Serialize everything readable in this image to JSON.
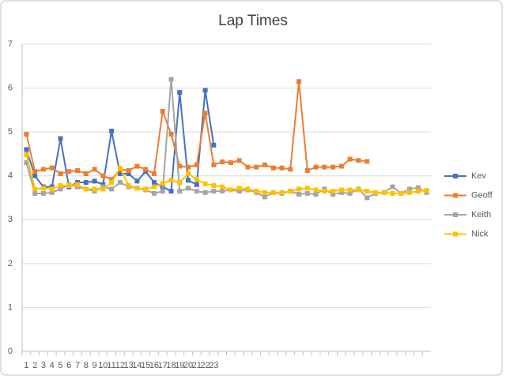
{
  "chart_data": {
    "type": "line",
    "title": "Lap Times",
    "categories": [
      1,
      2,
      3,
      4,
      5,
      6,
      7,
      8,
      9,
      10,
      11,
      12,
      13,
      14,
      15,
      16,
      17,
      18,
      19,
      20,
      21,
      22,
      23,
      null,
      null,
      null,
      null,
      null,
      null,
      null,
      null,
      null,
      null,
      null,
      null,
      null,
      null,
      null,
      null,
      null,
      null,
      null,
      null,
      null,
      null,
      null,
      null,
      null
    ],
    "ylim": [
      0,
      7
    ],
    "yticks": [
      0,
      1,
      2,
      3,
      4,
      5,
      6,
      7
    ],
    "grid": true,
    "legend": "right",
    "series": [
      {
        "name": "Kev",
        "color": "#4472c4",
        "values": [
          4.6,
          4.0,
          3.75,
          3.75,
          4.85,
          3.75,
          3.85,
          3.85,
          3.88,
          3.8,
          5.02,
          4.05,
          4.05,
          3.88,
          4.1,
          3.85,
          3.75,
          3.65,
          5.9,
          3.9,
          3.8,
          5.95,
          4.7,
          null,
          null,
          null,
          null,
          null,
          null,
          null,
          null,
          null,
          null,
          null,
          null,
          null,
          null,
          null,
          null,
          null,
          null,
          null,
          null,
          null,
          null,
          null,
          null,
          null
        ]
      },
      {
        "name": "Geoff",
        "color": "#ed7d31",
        "values": [
          4.95,
          4.1,
          4.15,
          4.18,
          4.05,
          4.1,
          4.12,
          4.05,
          4.15,
          4.0,
          3.92,
          4.15,
          4.12,
          4.22,
          4.15,
          4.05,
          5.47,
          4.95,
          4.22,
          4.2,
          4.25,
          5.43,
          4.25,
          4.32,
          4.3,
          4.35,
          4.2,
          4.2,
          4.25,
          4.18,
          4.18,
          4.15,
          6.15,
          4.12,
          4.2,
          4.2,
          4.2,
          4.22,
          4.38,
          4.35,
          4.33,
          null,
          null,
          null,
          null,
          null,
          null,
          null
        ]
      },
      {
        "name": "Keith",
        "color": "#a5a5a5",
        "values": [
          4.3,
          3.6,
          3.6,
          3.62,
          3.7,
          3.8,
          3.75,
          3.7,
          3.65,
          3.75,
          3.7,
          3.85,
          3.75,
          3.72,
          3.68,
          3.6,
          3.65,
          6.2,
          3.65,
          3.72,
          3.65,
          3.62,
          3.65,
          3.65,
          3.68,
          3.65,
          3.68,
          3.62,
          3.52,
          3.62,
          3.6,
          3.65,
          3.58,
          3.6,
          3.58,
          3.7,
          3.58,
          3.62,
          3.6,
          3.7,
          3.5,
          3.6,
          3.62,
          3.75,
          3.6,
          3.7,
          3.73,
          3.62
        ]
      },
      {
        "name": "Nick",
        "color": "#ffc000",
        "values": [
          4.48,
          3.7,
          3.72,
          3.7,
          3.78,
          3.78,
          3.8,
          3.7,
          3.7,
          3.7,
          3.85,
          4.18,
          3.78,
          3.72,
          3.7,
          3.75,
          3.83,
          3.9,
          3.85,
          4.05,
          3.92,
          3.82,
          3.78,
          3.75,
          3.68,
          3.72,
          3.7,
          3.65,
          3.62,
          3.62,
          3.62,
          3.65,
          3.7,
          3.72,
          3.68,
          3.65,
          3.65,
          3.68,
          3.68,
          3.68,
          3.65,
          3.62,
          3.62,
          3.6,
          3.6,
          3.62,
          3.65,
          3.67
        ]
      }
    ]
  }
}
